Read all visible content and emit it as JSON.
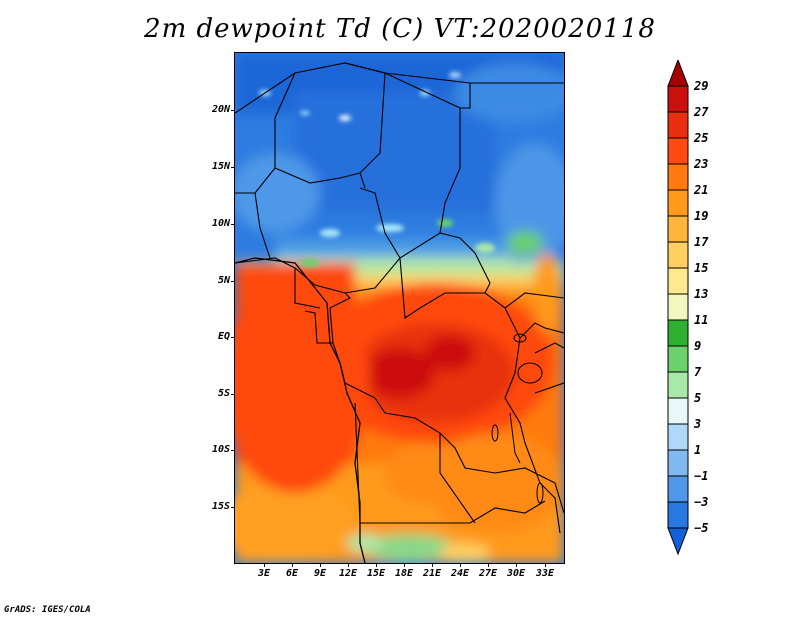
{
  "title": "2m dewpoint Td (C) VT:2020020118",
  "footer": "GrADS: IGES/COLA",
  "map": {
    "lat_labels": [
      "20N",
      "15N",
      "10N",
      "5N",
      "EQ",
      "5S",
      "10S",
      "15S"
    ],
    "lon_labels": [
      "3E",
      "6E",
      "9E",
      "12E",
      "15E",
      "18E",
      "21E",
      "24E",
      "27E",
      "30E",
      "33E"
    ]
  },
  "colorbar": {
    "labels": [
      "29",
      "27",
      "25",
      "23",
      "21",
      "19",
      "17",
      "15",
      "13",
      "11",
      "9",
      "7",
      "5",
      "3",
      "1",
      "−1",
      "−3",
      "−5"
    ],
    "colors": [
      "#a50000",
      "#cc1010",
      "#e83010",
      "#ff4a10",
      "#ff7a10",
      "#ff9a1a",
      "#ffb43c",
      "#ffd060",
      "#ffe890",
      "#f0f8c0",
      "#30b030",
      "#6cd06c",
      "#a8e8a8",
      "#e8f8f8",
      "#b0d8f8",
      "#80b8f0",
      "#5098e8",
      "#2878e0",
      "#1060d8"
    ]
  }
}
